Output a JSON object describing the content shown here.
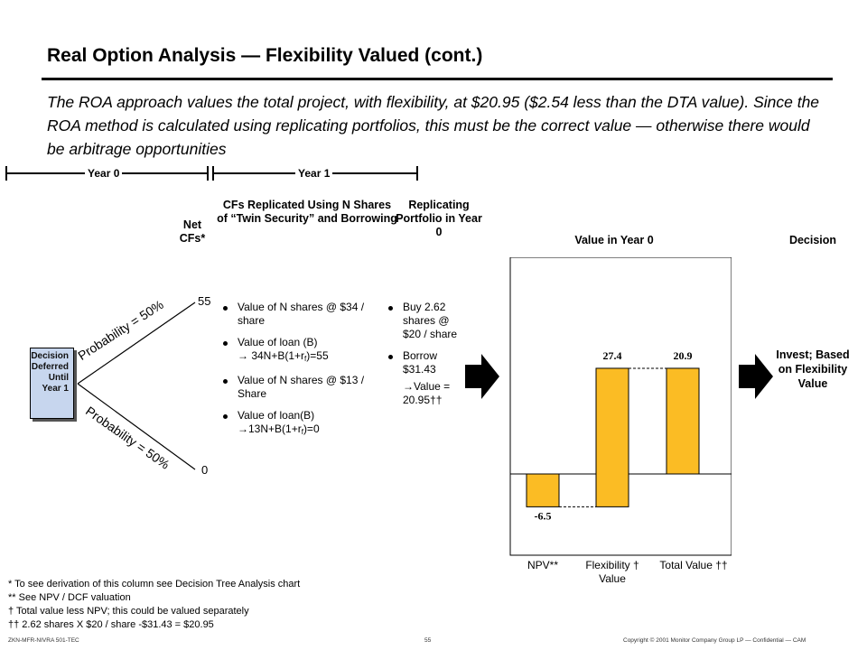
{
  "title": "Real Option Analysis — Flexibility Valued (cont.)",
  "intro": "The ROA approach values the total project, with flexibility, at $20.95 ($2.54 less than the DTA value).  Since the ROA method is calculated using replicating portfolios, this must be the correct value — otherwise there would be arbitrage opportunities",
  "timeline": {
    "year0": "Year 0",
    "year1": "Year 1"
  },
  "headers": {
    "net_cfs": "Net CFs*",
    "cfs_replicated": "CFs Replicated Using N Shares of “Twin Security” and Borrowing",
    "replicating": "Replicating Portfolio in Year 0",
    "value_year0": "Value in Year 0",
    "decision": "Decision"
  },
  "tree": {
    "node": "Decision Deferred Until Year 1",
    "up_label": "Probability = 50%",
    "down_label": "Probability = 50%",
    "up_cf": "55",
    "down_cf": "0"
  },
  "cf_bullets": [
    "Value of N shares @ $34 / share",
    "Value of loan (B) → 34N+B(1+r_f)=55",
    "Value of N shares @ $13 / Share",
    "Value of loan(B) → 13N+B(1+r_f)=0"
  ],
  "portfolio_bullets": {
    "buy": "Buy 2.62 shares @ $20 / share",
    "borrow": "Borrow $31.43",
    "value": "→Value = 20.95††"
  },
  "decision_text": "Invest; Based on Flexibility Value",
  "chart_data": {
    "type": "bar",
    "categories": [
      "NPV**",
      "Flexibility † Value",
      "Total Value ††"
    ],
    "values": [
      -6.5,
      27.4,
      20.9
    ],
    "data_labels": [
      "-6.5",
      "27.4",
      "20.9"
    ],
    "ylim": [
      -10,
      35
    ],
    "bar_color": "#FBBC24"
  },
  "footnotes": [
    "*   To see derivation of this column see Decision Tree Analysis chart",
    "**  See NPV / DCF valuation",
    "†   Total value less NPV; this could be valued separately",
    "††  2.62 shares X $20 / share -$31.43 = $20.95"
  ],
  "footer": {
    "left": "ZKN-MFR-NIVRA 501-TEC",
    "page": "55",
    "right": "Copyright © 2001 Monitor Company Group LP — Confidential — CAM"
  }
}
